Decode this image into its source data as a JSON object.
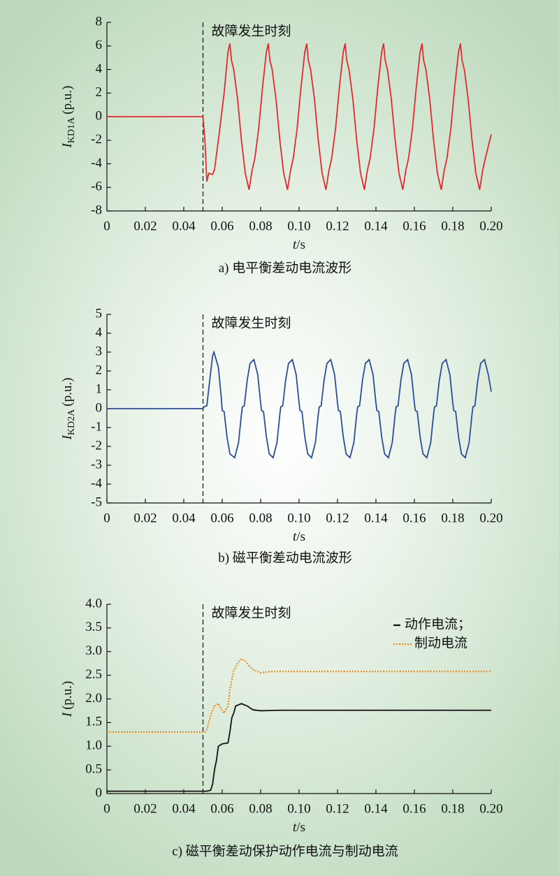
{
  "chart_data": [
    {
      "type": "line",
      "annotation": {
        "text": "故障发生时刻",
        "x": 0.05
      },
      "ylabel": {
        "symbol": "I",
        "subscript": "KD1A",
        "unit": "(p.u.)"
      },
      "xlabel": {
        "symbol": "t",
        "unit": "/s"
      },
      "caption": "a) 电平衡差动电流波形",
      "xlim": [
        0,
        0.2
      ],
      "ylim": [
        -8,
        8
      ],
      "xticks": [
        0,
        0.02,
        0.04,
        0.06,
        0.08,
        {
          "value": 0.1,
          "label": "0.10"
        },
        0.12,
        0.14,
        0.16,
        0.18,
        {
          "value": 0.2,
          "label": "0.20"
        }
      ],
      "yticks": [
        -8,
        -6,
        -4,
        -2,
        0,
        2,
        4,
        6,
        8
      ],
      "grid": false,
      "x": [
        0,
        0.05,
        0.051,
        0.052,
        0.053,
        0.055,
        0.056,
        0.058,
        0.061,
        0.063,
        0.064,
        0.0648,
        0.066,
        0.068,
        0.07,
        0.072,
        0.074,
        0.0755,
        0.077,
        0.079,
        0.081,
        0.083,
        0.084,
        0.0848,
        0.086,
        0.088,
        0.09,
        0.092,
        0.094,
        0.0955,
        0.097,
        0.099,
        0.101,
        0.103,
        0.104,
        0.1048,
        0.106,
        0.108,
        0.11,
        0.112,
        0.114,
        0.1155,
        0.117,
        0.119,
        0.121,
        0.123,
        0.124,
        0.1248,
        0.126,
        0.128,
        0.13,
        0.132,
        0.134,
        0.1355,
        0.137,
        0.139,
        0.141,
        0.143,
        0.144,
        0.1448,
        0.146,
        0.148,
        0.15,
        0.152,
        0.154,
        0.1555,
        0.157,
        0.159,
        0.161,
        0.163,
        0.164,
        0.1648,
        0.166,
        0.168,
        0.17,
        0.172,
        0.174,
        0.1755,
        0.177,
        0.179,
        0.181,
        0.183,
        0.184,
        0.1848,
        0.186,
        0.188,
        0.19,
        0.192,
        0.194,
        0.1955,
        0.197,
        0.2
      ],
      "series": [
        {
          "color": "#e8282e",
          "values": [
            0,
            0,
            -2,
            -5.5,
            -4.8,
            -4.9,
            -4.5,
            -2,
            2,
            5.5,
            6.2,
            4.8,
            4,
            1.5,
            -2,
            -4.8,
            -6.2,
            -4.6,
            -3.5,
            -1,
            2.5,
            5.5,
            6.2,
            4.8,
            4,
            1.5,
            -2,
            -4.8,
            -6.2,
            -4.6,
            -3.5,
            -1,
            2.5,
            5.5,
            6.2,
            4.8,
            4,
            1.5,
            -2,
            -4.8,
            -6.2,
            -4.6,
            -3.5,
            -1,
            2.5,
            5.5,
            6.2,
            4.8,
            4,
            1.5,
            -2,
            -4.8,
            -6.2,
            -4.6,
            -3.5,
            -1,
            2.5,
            5.5,
            6.2,
            4.8,
            4,
            1.5,
            -2,
            -4.8,
            -6.2,
            -4.6,
            -3.5,
            -1,
            2.5,
            5.5,
            6.2,
            4.8,
            4,
            1.5,
            -2,
            -4.8,
            -6.2,
            -4.6,
            -3.5,
            -1,
            2.5,
            5.5,
            6.2,
            4.8,
            4,
            1.5,
            -2,
            -4.8,
            -6.2,
            -4.6,
            -3.5,
            -1.5
          ]
        }
      ]
    },
    {
      "type": "line",
      "annotation": {
        "text": "故障发生时刻",
        "x": 0.05
      },
      "ylabel": {
        "symbol": "I",
        "subscript": "KD2A",
        "unit": "(p.u.)"
      },
      "xlabel": {
        "symbol": "t",
        "unit": "/s"
      },
      "caption": "b) 磁平衡差动电流波形",
      "xlim": [
        0,
        0.2
      ],
      "ylim": [
        -5,
        5
      ],
      "xticks": [
        0,
        0.02,
        0.04,
        0.06,
        0.08,
        {
          "value": 0.1,
          "label": "0.10"
        },
        0.12,
        0.14,
        0.16,
        0.18,
        {
          "value": 0.2,
          "label": "0.20"
        }
      ],
      "yticks": [
        -5,
        -4,
        -3,
        -2,
        -1,
        0,
        1,
        2,
        3,
        4,
        5
      ],
      "grid": false,
      "x": [
        0,
        0.05,
        0.0505,
        0.052,
        0.0535,
        0.055,
        0.0557,
        0.058,
        0.0595,
        0.06,
        0.061,
        0.0625,
        0.064,
        0.0665,
        0.0685,
        0.07,
        0.0705,
        0.0715,
        0.073,
        0.0745,
        0.0765,
        0.0785,
        0.08,
        0.0805,
        0.0815,
        0.083,
        0.0845,
        0.0865,
        0.0885,
        0.09,
        0.0905,
        0.0915,
        0.093,
        0.0945,
        0.0965,
        0.0985,
        0.1,
        0.1005,
        0.1015,
        0.103,
        0.1045,
        0.1065,
        0.1085,
        0.11,
        0.1105,
        0.1115,
        0.113,
        0.1145,
        0.1165,
        0.1185,
        0.12,
        0.1205,
        0.1215,
        0.123,
        0.1245,
        0.1265,
        0.1285,
        0.13,
        0.1305,
        0.1315,
        0.133,
        0.1345,
        0.1365,
        0.1385,
        0.14,
        0.1405,
        0.1415,
        0.143,
        0.1445,
        0.1465,
        0.1485,
        0.15,
        0.1505,
        0.1515,
        0.153,
        0.1545,
        0.1565,
        0.1585,
        0.16,
        0.1605,
        0.1615,
        0.163,
        0.1645,
        0.1665,
        0.1685,
        0.17,
        0.1705,
        0.1715,
        0.173,
        0.1745,
        0.1765,
        0.1785,
        0.18,
        0.1805,
        0.1815,
        0.183,
        0.1845,
        0.1865,
        0.1885,
        0.19,
        0.1905,
        0.1915,
        0.193,
        0.1945,
        0.1965,
        0.1985,
        0.2
      ],
      "series": [
        {
          "color": "#2a4d9c",
          "values": [
            0,
            0,
            0.1,
            0.15,
            1.5,
            2.8,
            3.0,
            2.2,
            0.6,
            -0.1,
            -0.15,
            -1.5,
            -2.4,
            -2.6,
            -1.8,
            -0.3,
            0.1,
            0.15,
            1.5,
            2.4,
            2.6,
            1.8,
            0.3,
            -0.1,
            -0.15,
            -1.5,
            -2.4,
            -2.6,
            -1.8,
            -0.3,
            0.1,
            0.15,
            1.5,
            2.4,
            2.6,
            1.8,
            0.3,
            -0.1,
            -0.15,
            -1.5,
            -2.4,
            -2.6,
            -1.8,
            -0.3,
            0.1,
            0.15,
            1.5,
            2.4,
            2.6,
            1.8,
            0.3,
            -0.1,
            -0.15,
            -1.5,
            -2.4,
            -2.6,
            -1.8,
            -0.3,
            0.1,
            0.15,
            1.5,
            2.4,
            2.6,
            1.8,
            0.3,
            -0.1,
            -0.15,
            -1.5,
            -2.4,
            -2.6,
            -1.8,
            -0.3,
            0.1,
            0.15,
            1.5,
            2.4,
            2.6,
            1.8,
            0.3,
            -0.1,
            -0.15,
            -1.5,
            -2.4,
            -2.6,
            -1.8,
            -0.3,
            0.1,
            0.15,
            1.5,
            2.4,
            2.6,
            1.8,
            0.3,
            -0.1,
            -0.15,
            -1.5,
            -2.4,
            -2.6,
            -1.8,
            -0.3,
            0.1,
            0.15,
            1.5,
            2.4,
            2.6,
            1.8,
            0.9
          ]
        }
      ]
    },
    {
      "type": "line",
      "annotation": {
        "text": "故障发生时刻",
        "x": 0.05
      },
      "ylabel": {
        "symbol": "I",
        "unit": "(p.u.)"
      },
      "xlabel": {
        "symbol": "t",
        "unit": "/s"
      },
      "caption": "c) 磁平衡差动保护动作电流与制动电流",
      "xlim": [
        0,
        0.2
      ],
      "ylim": [
        0,
        4
      ],
      "xticks": [
        0,
        0.02,
        0.04,
        0.06,
        0.08,
        {
          "value": 0.1,
          "label": "0.10"
        },
        0.12,
        0.14,
        0.16,
        0.18,
        {
          "value": 0.2,
          "label": "0.20"
        }
      ],
      "yticks": [
        0,
        0.5,
        {
          "value": 1,
          "label": "1.0"
        },
        1.5,
        {
          "value": 2,
          "label": "2.0"
        },
        2.5,
        {
          "value": 3,
          "label": "3.0"
        },
        3.5,
        {
          "value": 4,
          "label": "4.0"
        }
      ],
      "grid": false,
      "legend": "upper right",
      "series": [
        {
          "name": "动作电流；",
          "color": "#111111",
          "style": "solid",
          "x": [
            0,
            0.052,
            0.054,
            0.055,
            0.056,
            0.057,
            0.058,
            0.06,
            0.063,
            0.064,
            0.065,
            0.066,
            0.067,
            0.07,
            0.073,
            0.076,
            0.08,
            0.09,
            0.2
          ],
          "values": [
            0.05,
            0.05,
            0.07,
            0.2,
            0.5,
            0.7,
            1.0,
            1.05,
            1.07,
            1.3,
            1.6,
            1.7,
            1.85,
            1.9,
            1.85,
            1.77,
            1.75,
            1.76,
            1.76
          ]
        },
        {
          "name": "制动电流",
          "color": "#f08a1c",
          "style": "dotted",
          "x": [
            0,
            0.051,
            0.052,
            0.054,
            0.056,
            0.058,
            0.06,
            0.061,
            0.063,
            0.064,
            0.066,
            0.068,
            0.07,
            0.072,
            0.074,
            0.076,
            0.08,
            0.085,
            0.2
          ],
          "values": [
            1.3,
            1.3,
            1.35,
            1.65,
            1.85,
            1.9,
            1.75,
            1.7,
            1.85,
            2.2,
            2.6,
            2.75,
            2.85,
            2.8,
            2.7,
            2.62,
            2.55,
            2.58,
            2.58
          ]
        }
      ]
    }
  ]
}
